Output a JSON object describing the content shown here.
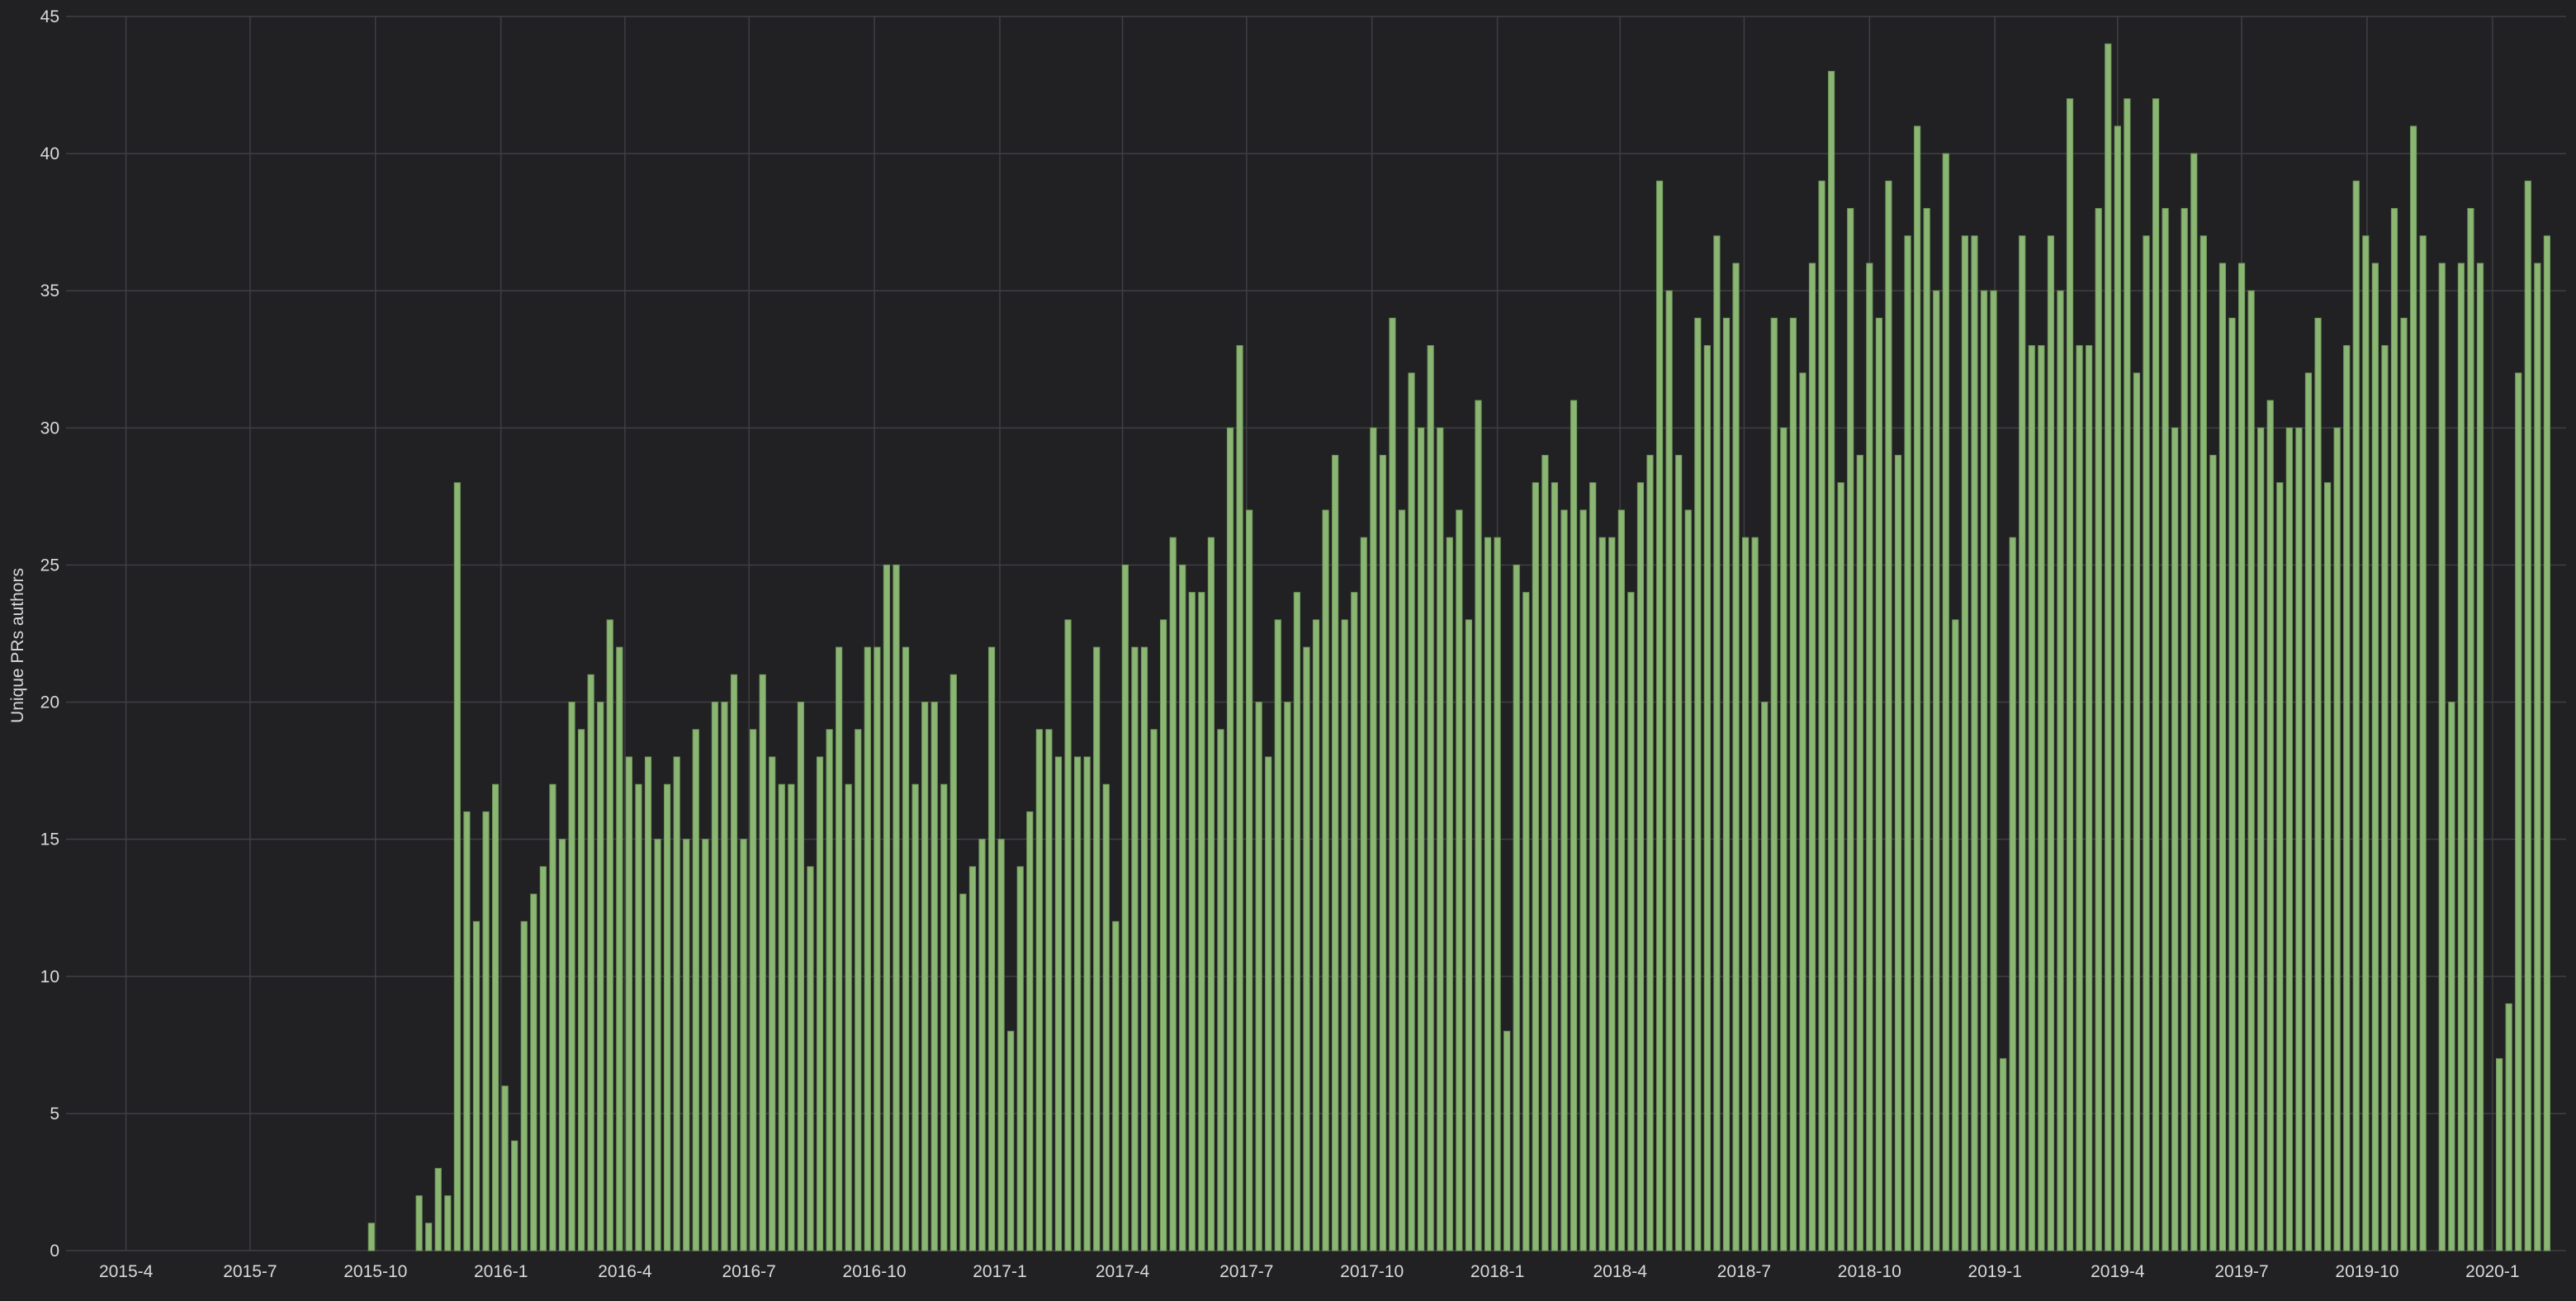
{
  "colors": {
    "background": "#212124",
    "bar": "#8ab573",
    "bar_stroke": "#6f9a59",
    "grid": "#3f3f44",
    "text": "#d8d9da"
  },
  "chart_data": {
    "type": "bar",
    "ylabel": "Unique PRs authors",
    "ylim": [
      0,
      45
    ],
    "yticks": [
      0,
      5,
      10,
      15,
      20,
      25,
      30,
      35,
      40,
      45
    ],
    "x_ticks": [
      "2015-4",
      "2015-7",
      "2015-10",
      "2016-1",
      "2016-4",
      "2016-7",
      "2016-10",
      "2017-1",
      "2017-4",
      "2017-7",
      "2017-10",
      "2018-1",
      "2018-4",
      "2018-7",
      "2018-10",
      "2019-1",
      "2019-4",
      "2019-7",
      "2019-10",
      "2020-1"
    ],
    "x_start": "2015-02-16",
    "x_end": "2020-02-24",
    "bar_interval": "weekly",
    "grid": true,
    "series": [
      {
        "values": [
          1,
          0,
          0,
          0,
          0,
          2,
          1,
          3,
          2,
          28,
          16,
          12,
          16,
          17,
          6,
          4,
          12,
          13,
          14,
          17,
          15,
          20,
          19,
          21,
          20,
          23,
          22,
          18,
          17,
          18,
          15,
          17,
          18,
          15,
          19,
          15,
          20,
          20,
          21,
          15,
          19,
          21,
          18,
          17,
          17,
          20,
          14,
          18,
          19,
          22,
          17,
          19,
          22,
          22,
          25,
          25,
          22,
          17,
          20,
          20,
          17,
          21,
          13,
          14,
          15,
          22,
          15,
          8,
          14,
          16,
          19,
          19,
          18,
          23,
          18,
          18,
          22,
          17,
          12,
          25,
          22,
          22,
          19,
          23,
          26,
          25,
          24,
          24,
          26,
          19,
          30,
          33,
          27,
          20,
          18,
          23,
          20,
          24,
          22,
          23,
          27,
          29,
          23,
          24,
          26,
          30,
          29,
          34,
          27,
          32,
          30,
          33,
          30,
          26,
          27,
          23,
          31,
          26,
          26,
          8,
          25,
          24,
          28,
          29,
          28,
          27,
          31,
          27,
          28,
          26,
          26,
          27,
          24,
          28,
          29,
          39,
          35,
          29,
          27,
          34,
          33,
          37,
          34,
          36,
          26,
          26,
          20,
          34,
          30,
          34,
          32,
          36,
          39,
          43,
          28,
          38,
          29,
          36,
          34,
          39,
          29,
          37,
          41,
          38,
          35,
          40,
          23,
          37,
          37,
          35,
          35,
          7,
          26,
          37,
          33,
          33,
          37,
          35,
          42,
          33,
          33,
          38,
          44,
          41,
          42,
          32,
          37,
          42,
          38,
          30,
          38,
          40,
          37,
          29,
          36,
          34,
          36,
          35,
          30,
          31,
          28,
          30,
          30,
          32,
          34,
          28,
          30,
          33,
          39,
          37,
          36,
          33,
          38,
          34,
          41,
          37,
          0,
          36,
          20,
          36,
          38,
          36,
          0,
          7,
          9,
          32,
          39,
          36,
          37
        ]
      }
    ]
  }
}
